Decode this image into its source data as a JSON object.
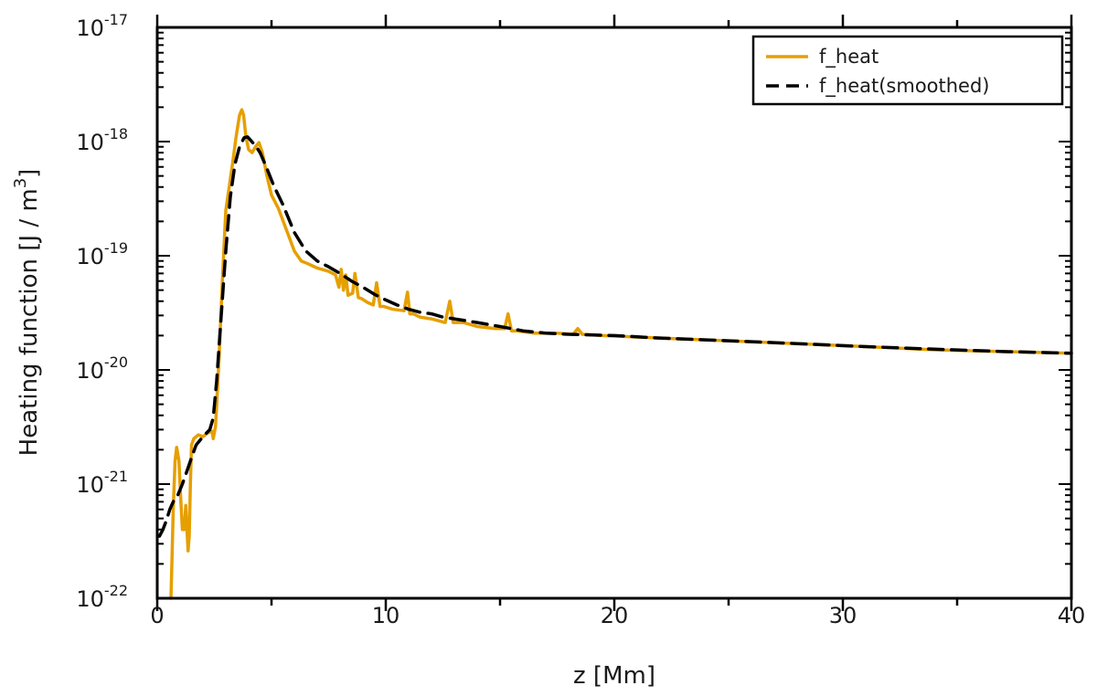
{
  "chart_data": {
    "type": "line",
    "xlabel": "z [Mm]",
    "ylabel": {
      "prefix": "Heating function [J / m",
      "sup": "3",
      "suffix": "]"
    },
    "xlim": [
      0,
      40
    ],
    "ylim": [
      1e-22,
      1e-17
    ],
    "yscale": "log",
    "x_ticks": [
      "0",
      "10",
      "20",
      "30",
      "40"
    ],
    "x_tick_values": [
      0,
      10,
      20,
      30,
      40
    ],
    "y_ticks": [
      {
        "base": "10",
        "exp": "-22",
        "value": 1e-22
      },
      {
        "base": "10",
        "exp": "-21",
        "value": 1e-21
      },
      {
        "base": "10",
        "exp": "-20",
        "value": 1e-20
      },
      {
        "base": "10",
        "exp": "-19",
        "value": 1e-19
      },
      {
        "base": "10",
        "exp": "-18",
        "value": 1e-18
      },
      {
        "base": "10",
        "exp": "-17",
        "value": 1e-17
      }
    ],
    "grid": false,
    "legend_position": "top-right",
    "series": [
      {
        "name": "f_heat",
        "color": "#E69F00",
        "dash": "solid",
        "x": [
          0.6,
          0.64,
          0.7,
          0.78,
          0.85,
          0.95,
          1.02,
          1.1,
          1.18,
          1.25,
          1.3,
          1.35,
          1.4,
          1.45,
          1.5,
          1.6,
          1.8,
          2.0,
          2.2,
          2.4,
          2.45,
          2.55,
          2.7,
          2.85,
          3.0,
          3.15,
          3.3,
          3.45,
          3.6,
          3.7,
          3.78,
          3.88,
          4.0,
          4.15,
          4.3,
          4.45,
          4.6,
          4.8,
          5.0,
          5.3,
          5.6,
          6.0,
          6.3,
          6.6,
          7.0,
          7.5,
          7.8,
          7.95,
          8.05,
          8.15,
          8.25,
          8.35,
          8.55,
          8.65,
          8.8,
          8.95,
          9.2,
          9.45,
          9.6,
          9.75,
          9.9,
          10.3,
          10.8,
          10.95,
          11.05,
          11.2,
          11.5,
          12.0,
          12.6,
          12.8,
          12.95,
          13.1,
          13.4,
          14.0,
          14.8,
          15.2,
          15.35,
          15.5,
          15.7,
          16.5,
          17.5,
          18.2,
          18.4,
          18.6,
          19.5,
          22,
          25,
          28,
          31,
          34,
          37,
          40
        ],
        "y": [
          1e-22,
          2e-22,
          6e-22,
          1.6e-21,
          2.1e-21,
          1.6e-21,
          8e-22,
          4e-22,
          4e-22,
          6.5e-22,
          4e-22,
          2.6e-22,
          3.5e-22,
          1e-21,
          2.2e-21,
          2.5e-21,
          2.7e-21,
          2.6e-21,
          2.8e-21,
          2.9e-21,
          2.5e-21,
          3.2e-21,
          1.2e-20,
          6e-20,
          2.5e-19,
          4e-19,
          6.5e-19,
          1.1e-18,
          1.7e-18,
          1.9e-18,
          1.7e-18,
          1.1e-18,
          8.5e-19,
          8e-19,
          9e-19,
          9.8e-19,
          8e-19,
          5e-19,
          3.4e-19,
          2.6e-19,
          1.8e-19,
          1.1e-19,
          9e-20,
          8.5e-20,
          7.8e-20,
          7.3e-20,
          6.8e-20,
          5.3e-20,
          7.6e-20,
          5e-20,
          6.8e-20,
          4.5e-20,
          4.7e-20,
          7e-20,
          4.3e-20,
          4.2e-20,
          3.9e-20,
          3.7e-20,
          5.8e-20,
          3.6e-20,
          3.6e-20,
          3.4e-20,
          3.3e-20,
          4.8e-20,
          3.1e-20,
          3.1e-20,
          2.9e-20,
          2.8e-20,
          2.6e-20,
          4e-20,
          2.6e-20,
          2.6e-20,
          2.6e-20,
          2.4e-20,
          2.3e-20,
          2.3e-20,
          3.1e-20,
          2.2e-20,
          2.2e-20,
          2.1e-20,
          2.1e-20,
          2.05e-20,
          2.3e-20,
          2.05e-20,
          2e-20,
          1.9e-20,
          1.8e-20,
          1.7e-20,
          1.6e-20,
          1.5e-20,
          1.45e-20,
          1.4e-20
        ]
      },
      {
        "name": "f_heat(smoothed)",
        "color": "#000000",
        "dash": "dashed",
        "x": [
          0.1,
          0.25,
          0.4,
          0.55,
          0.7,
          0.9,
          1.1,
          1.3,
          1.5,
          1.7,
          2.0,
          2.3,
          2.45,
          2.6,
          2.8,
          3.0,
          3.2,
          3.4,
          3.6,
          3.8,
          3.95,
          4.1,
          4.3,
          4.5,
          4.8,
          5.1,
          5.5,
          6.0,
          6.5,
          7.0,
          7.5,
          8.0,
          8.5,
          9.0,
          9.5,
          10.0,
          10.5,
          11.0,
          11.5,
          12.0,
          12.5,
          13.0,
          13.5,
          14.0,
          15.0,
          16.0,
          17.0,
          18.0,
          20,
          22,
          25,
          28,
          31,
          34,
          37,
          40
        ],
        "y": [
          3.5e-22,
          4e-22,
          4.8e-22,
          6e-22,
          7e-22,
          8e-22,
          1e-21,
          1.3e-21,
          1.7e-21,
          2.2e-21,
          2.6e-21,
          3e-21,
          3.8e-21,
          8e-21,
          3e-20,
          1.1e-19,
          3.3e-19,
          6.3e-19,
          9e-19,
          1.08e-18,
          1.1e-18,
          1.02e-18,
          9.2e-19,
          8e-19,
          5.8e-19,
          4.1e-19,
          2.8e-19,
          1.6e-19,
          1.1e-19,
          9e-20,
          8e-20,
          7e-20,
          6e-20,
          5.3e-20,
          4.6e-20,
          4.1e-20,
          3.7e-20,
          3.4e-20,
          3.2e-20,
          3.1e-20,
          2.9e-20,
          2.8e-20,
          2.7e-20,
          2.6e-20,
          2.4e-20,
          2.2e-20,
          2.1e-20,
          2.05e-20,
          2e-20,
          1.9e-20,
          1.8e-20,
          1.7e-20,
          1.6e-20,
          1.52e-20,
          1.45e-20,
          1.4e-20
        ]
      }
    ]
  }
}
